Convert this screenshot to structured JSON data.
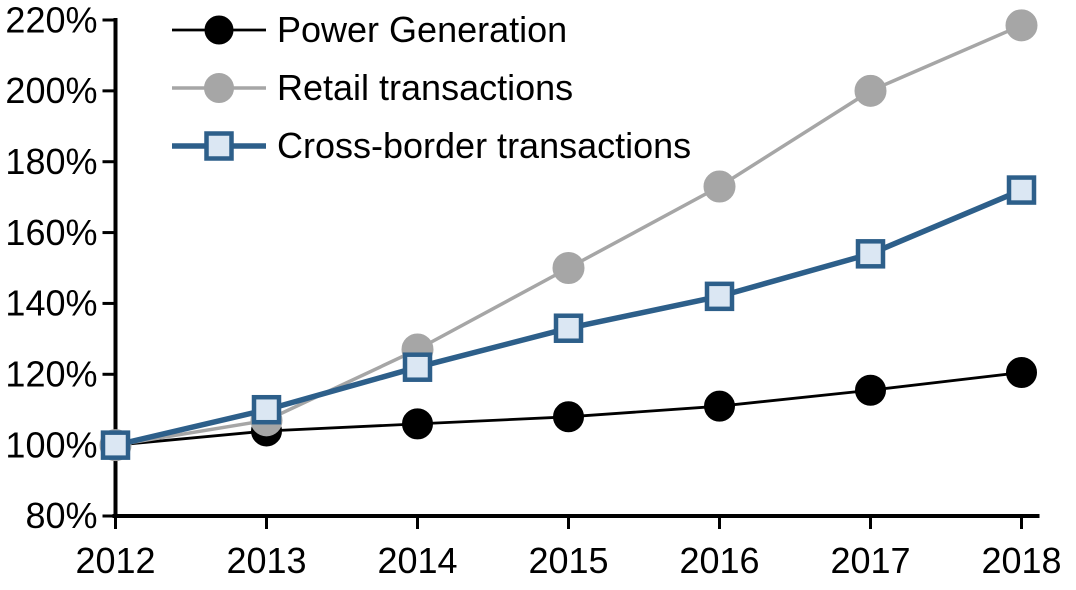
{
  "chart_data": {
    "type": "line",
    "title": "",
    "xlabel": "",
    "ylabel": "",
    "categories": [
      "2012",
      "2013",
      "2014",
      "2015",
      "2016",
      "2017",
      "2018"
    ],
    "ylim": [
      80,
      220
    ],
    "grid": false,
    "legend_position": "top-left",
    "y_ticks": [
      {
        "value": 80,
        "label": "80%"
      },
      {
        "value": 100,
        "label": "100%"
      },
      {
        "value": 120,
        "label": "120%"
      },
      {
        "value": 140,
        "label": "140%"
      },
      {
        "value": 160,
        "label": "160%"
      },
      {
        "value": 180,
        "label": "180%"
      },
      {
        "value": 200,
        "label": "200%"
      },
      {
        "value": 220,
        "label": "220%"
      }
    ],
    "series": [
      {
        "name": "Power Generation",
        "values": [
          100,
          104,
          106,
          108,
          111,
          115.5,
          120.5
        ],
        "line_color": "#000000",
        "marker": "circle",
        "marker_fill": "#000000",
        "marker_stroke": "#000000"
      },
      {
        "name": "Retail transactions",
        "values": [
          100,
          107,
          127,
          150,
          173,
          200,
          218.5
        ],
        "line_color": "#a6a6a6",
        "marker": "circle",
        "marker_fill": "#a6a6a6",
        "marker_stroke": "#a6a6a6"
      },
      {
        "name": "Cross-border transactions",
        "values": [
          100,
          110,
          122,
          133,
          142,
          154,
          172
        ],
        "line_color": "#2d5f8a",
        "marker": "square",
        "marker_fill": "#dbe7f3",
        "marker_stroke": "#2d5f8a"
      }
    ]
  }
}
